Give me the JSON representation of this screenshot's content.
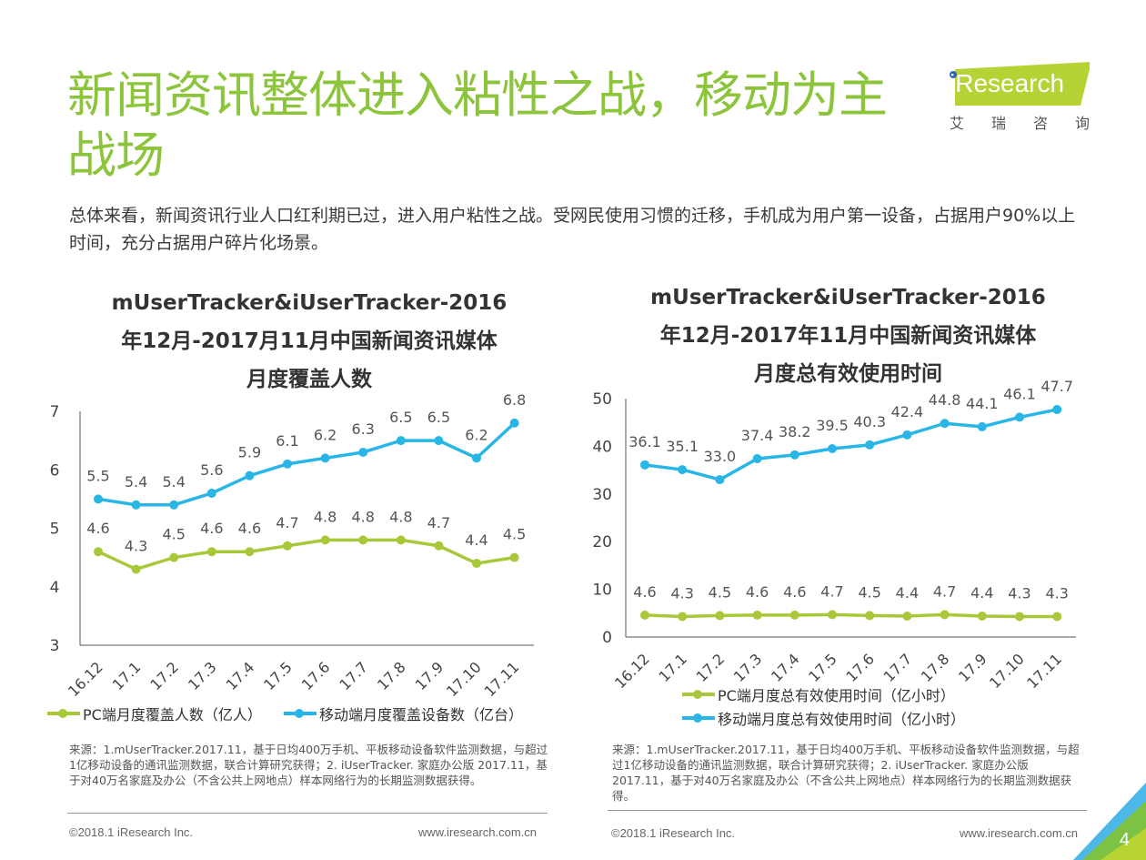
{
  "page": {
    "title": "新闻资讯整体进入粘性之战，移动为主战场",
    "intro": "总体来看，新闻资讯行业人口红利期已过，进入用户粘性之战。受网民使用习惯的迁移，手机成为用户第一设备，占据用户90%以上时间，充分占据用户碎片化场景。",
    "logo": {
      "brand": "iResearch",
      "cn": [
        "艾",
        "瑞",
        "咨",
        "询"
      ]
    },
    "footer": {
      "copyright": "©2018.1 iResearch Inc.",
      "url": "www.iresearch.com.cn",
      "page_number": "4"
    },
    "colors": {
      "accent_green": "#8cc43c",
      "pc_series": "#a8c83a",
      "mobile_series": "#29b6e6",
      "logo_band": "#b5d334"
    }
  },
  "chart_data": [
    {
      "type": "line",
      "title": "mUserTracker&iUserTracker-2016年12月-2017月11月中国新闻资讯媒体月度覆盖人数",
      "title_lines": [
        "mUserTracker&iUserTracker-2016",
        "年12月-2017月11月中国新闻资讯媒体",
        "月度覆盖人数"
      ],
      "categories": [
        "16.12",
        "17.1",
        "17.2",
        "17.3",
        "17.4",
        "17.5",
        "17.6",
        "17.7",
        "17.8",
        "17.9",
        "17.10",
        "17.11"
      ],
      "ylim": [
        3,
        7
      ],
      "yticks": [
        "3",
        "4",
        "5",
        "6",
        "7"
      ],
      "xlabel": "",
      "ylabel": "",
      "grid": false,
      "legend": "bottom",
      "series": [
        {
          "name": "PC端月度覆盖人数（亿人）",
          "color": "#a8c83a",
          "values": [
            4.6,
            4.3,
            4.5,
            4.6,
            4.6,
            4.7,
            4.8,
            4.8,
            4.8,
            4.7,
            4.4,
            4.5
          ],
          "labels": [
            "4.6",
            "4.3",
            "4.5",
            "4.6",
            "4.6",
            "4.7",
            "4.8",
            "4.8",
            "4.8",
            "4.7",
            "4.4",
            "4.5"
          ]
        },
        {
          "name": "移动端月度覆盖设备数（亿台）",
          "color": "#29b6e6",
          "values": [
            5.5,
            5.4,
            5.4,
            5.6,
            5.9,
            6.1,
            6.2,
            6.3,
            6.5,
            6.5,
            6.2,
            6.8
          ],
          "labels": [
            "5.5",
            "5.4",
            "5.4",
            "5.6",
            "5.9",
            "6.1",
            "6.2",
            "6.3",
            "6.5",
            "6.5",
            "6.2",
            "6.8"
          ]
        }
      ],
      "source": "来源：1.mUserTracker.2017.11，基于日均400万手机、平板移动设备软件监测数据，与超过1亿移动设备的通讯监测数据，联合计算研究获得；2. iUserTracker. 家庭办公版 2017.11，基于对40万名家庭及办公（不含公共上网地点）样本网络行为的长期监测数据获得。"
    },
    {
      "type": "line",
      "title": "mUserTracker&iUserTracker-2016年12月-2017年11月中国新闻资讯媒体月度总有效使用时间",
      "title_lines": [
        "mUserTracker&iUserTracker-2016",
        "年12月-2017年11月中国新闻资讯媒体",
        "月度总有效使用时间"
      ],
      "categories": [
        "16.12",
        "17.1",
        "17.2",
        "17.3",
        "17.4",
        "17.5",
        "17.6",
        "17.7",
        "17.8",
        "17.9",
        "17.10",
        "17.11"
      ],
      "ylim": [
        0,
        50
      ],
      "yticks": [
        "0",
        "10",
        "20",
        "30",
        "40",
        "50"
      ],
      "xlabel": "",
      "ylabel": "",
      "grid": false,
      "legend": "bottom",
      "series": [
        {
          "name": "PC端月度总有效使用时间（亿小时）",
          "color": "#a8c83a",
          "values": [
            4.6,
            4.3,
            4.5,
            4.6,
            4.6,
            4.7,
            4.5,
            4.4,
            4.7,
            4.4,
            4.3,
            4.3
          ],
          "labels": [
            "4.6",
            "4.3",
            "4.5",
            "4.6",
            "4.6",
            "4.7",
            "4.5",
            "4.4",
            "4.7",
            "4.4",
            "4.3",
            "4.3"
          ]
        },
        {
          "name": "移动端月度总有效使用时间（亿小时）",
          "color": "#29b6e6",
          "values": [
            36.1,
            35.1,
            33.0,
            37.4,
            38.2,
            39.5,
            40.3,
            42.4,
            44.8,
            44.1,
            46.1,
            47.7
          ],
          "labels": [
            "36.1",
            "35.1",
            "33.0",
            "37.4",
            "38.2",
            "39.5",
            "40.3",
            "42.4",
            "44.8",
            "44.1",
            "46.1",
            "47.7"
          ]
        }
      ],
      "source": "来源：1.mUserTracker.2017.11，基于日均400万手机、平板移动设备软件监测数据，与超过1亿移动设备的通讯监测数据，联合计算研究获得；2. iUserTracker. 家庭办公版 2017.11，基于对40万名家庭及办公（不含公共上网地点）样本网络行为的长期监测数据获得。"
    }
  ]
}
